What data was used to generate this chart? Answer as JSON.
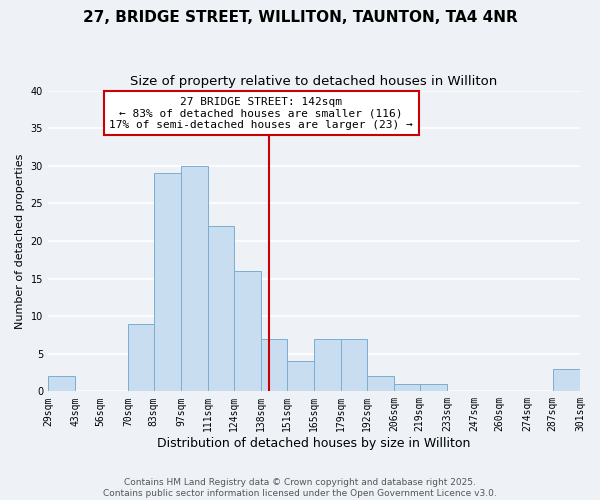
{
  "title": "27, BRIDGE STREET, WILLITON, TAUNTON, TA4 4NR",
  "subtitle": "Size of property relative to detached houses in Williton",
  "xlabel": "Distribution of detached houses by size in Williton",
  "ylabel": "Number of detached properties",
  "bin_edges": [
    29,
    43,
    56,
    70,
    83,
    97,
    111,
    124,
    138,
    151,
    165,
    179,
    192,
    206,
    219,
    233,
    247,
    260,
    274,
    287,
    301
  ],
  "bin_labels": [
    "29sqm",
    "43sqm",
    "56sqm",
    "70sqm",
    "83sqm",
    "97sqm",
    "111sqm",
    "124sqm",
    "138sqm",
    "151sqm",
    "165sqm",
    "179sqm",
    "192sqm",
    "206sqm",
    "219sqm",
    "233sqm",
    "247sqm",
    "260sqm",
    "274sqm",
    "287sqm",
    "301sqm"
  ],
  "counts": [
    2,
    0,
    0,
    9,
    29,
    30,
    22,
    16,
    7,
    4,
    7,
    7,
    2,
    1,
    1,
    0,
    0,
    0,
    0,
    3
  ],
  "bar_color": "#c8ddf0",
  "bar_edge_color": "#7aaed0",
  "vline_x": 142,
  "vline_color": "#cc0000",
  "annotation_line1": "27 BRIDGE STREET: 142sqm",
  "annotation_line2": "← 83% of detached houses are smaller (116)",
  "annotation_line3": "17% of semi-detached houses are larger (23) →",
  "annotation_box_color": "#ffffff",
  "annotation_box_edge_color": "#cc0000",
  "ylim": [
    0,
    40
  ],
  "yticks": [
    0,
    5,
    10,
    15,
    20,
    25,
    30,
    35,
    40
  ],
  "background_color": "#eef2f7",
  "grid_color": "#ffffff",
  "footer_text": "Contains HM Land Registry data © Crown copyright and database right 2025.\nContains public sector information licensed under the Open Government Licence v3.0.",
  "title_fontsize": 11,
  "subtitle_fontsize": 9.5,
  "xlabel_fontsize": 9,
  "ylabel_fontsize": 8,
  "tick_fontsize": 7,
  "annotation_fontsize": 8,
  "footer_fontsize": 6.5
}
